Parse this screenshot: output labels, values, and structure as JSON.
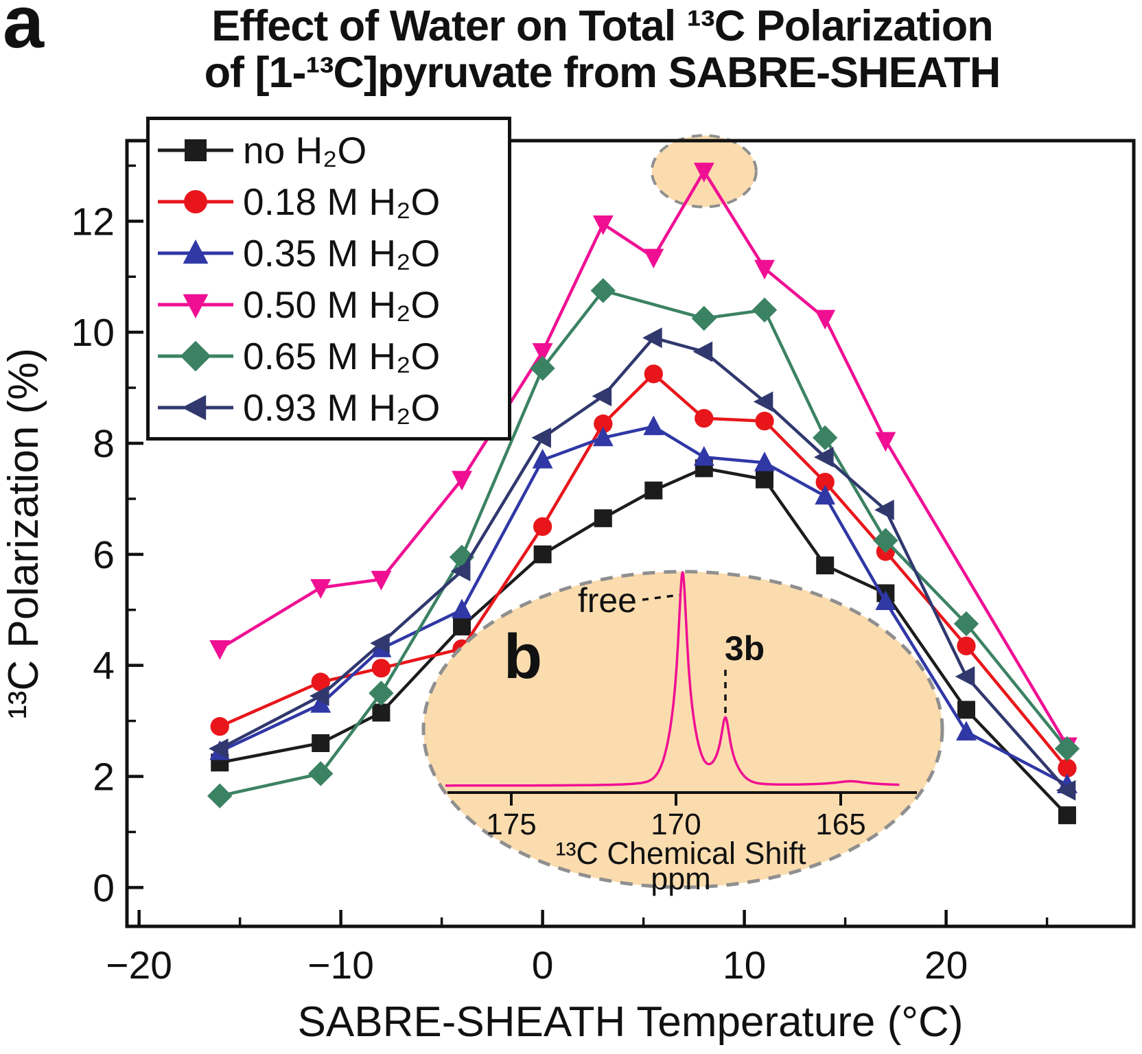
{
  "figure": {
    "panel_a": "a",
    "panel_b": "b",
    "title_line1": "Effect of Water on Total ¹³C Polarization",
    "title_line2": "of [1-¹³C]pyruvate from SABRE-SHEATH"
  },
  "chart_data": [
    {
      "id": "main",
      "type": "line",
      "title": "Effect of Water on Total 13C Polarization of [1-13C]pyruvate from SABRE-SHEATH",
      "xlabel": "SABRE-SHEATH Temperature (°C)",
      "ylabel": "¹³C Polarization (%)",
      "xlim": [
        -20.6,
        29.3
      ],
      "ylim": [
        -0.7,
        13.45
      ],
      "x_major_ticks": [
        -20,
        -10,
        0,
        10,
        20
      ],
      "x_minor_ticks": [
        -15,
        -5,
        5,
        15,
        25
      ],
      "y_major_ticks": [
        0,
        2,
        4,
        6,
        8,
        10,
        12
      ],
      "y_minor_ticks": [
        1,
        3,
        5,
        7,
        9,
        11,
        13
      ],
      "grid": false,
      "legend_position": "top-left",
      "series": [
        {
          "name": "no H₂O",
          "color": "#1c1c1c",
          "marker": "square",
          "points": [
            [
              -16,
              2.25
            ],
            [
              -11,
              2.6
            ],
            [
              -8,
              3.15
            ],
            [
              -4,
              4.7
            ],
            [
              0,
              6.0
            ],
            [
              3,
              6.65
            ],
            [
              5.5,
              7.15
            ],
            [
              8,
              7.55
            ],
            [
              11,
              7.35
            ],
            [
              14,
              5.8
            ],
            [
              17,
              5.3
            ],
            [
              21,
              3.2
            ],
            [
              26,
              1.3
            ]
          ]
        },
        {
          "name": "0.18 M H₂O",
          "color": "#e8161b",
          "marker": "circle",
          "points": [
            [
              -16,
              2.9
            ],
            [
              -11,
              3.7
            ],
            [
              -8,
              3.95
            ],
            [
              -4,
              4.3
            ],
            [
              0,
              6.5
            ],
            [
              3,
              8.35
            ],
            [
              5.5,
              9.25
            ],
            [
              8,
              8.45
            ],
            [
              11,
              8.4
            ],
            [
              14,
              7.3
            ],
            [
              17,
              6.05
            ],
            [
              21,
              4.35
            ],
            [
              26,
              2.15
            ]
          ]
        },
        {
          "name": "0.35 M H₂O",
          "color": "#3038a6",
          "marker": "triangle-up",
          "points": [
            [
              -16,
              2.45
            ],
            [
              -11,
              3.3
            ],
            [
              -8,
              4.3
            ],
            [
              -4,
              5.0
            ],
            [
              0,
              7.7
            ],
            [
              3,
              8.1
            ],
            [
              5.5,
              8.3
            ],
            [
              8,
              7.75
            ],
            [
              11,
              7.65
            ],
            [
              14,
              7.05
            ],
            [
              17,
              5.15
            ],
            [
              21,
              2.8
            ],
            [
              26,
              1.85
            ]
          ]
        },
        {
          "name": "0.50 M H₂O",
          "color": "#f00f93",
          "marker": "triangle-down",
          "points": [
            [
              -16,
              4.3
            ],
            [
              -11,
              5.4
            ],
            [
              -8,
              5.55
            ],
            [
              -4,
              7.35
            ],
            [
              0,
              9.65
            ],
            [
              3,
              11.95
            ],
            [
              5.5,
              11.35
            ],
            [
              8,
              12.9
            ],
            [
              11,
              11.15
            ],
            [
              14,
              10.25
            ],
            [
              17,
              8.05
            ],
            [
              26,
              2.55
            ]
          ]
        },
        {
          "name": "0.65 M H₂O",
          "color": "#3b8263",
          "marker": "diamond",
          "points": [
            [
              -16,
              1.65
            ],
            [
              -11,
              2.05
            ],
            [
              -8,
              3.5
            ],
            [
              -4,
              5.95
            ],
            [
              0,
              9.35
            ],
            [
              3,
              10.75
            ],
            [
              8,
              10.25
            ],
            [
              11,
              10.4
            ],
            [
              14,
              8.1
            ],
            [
              17,
              6.25
            ],
            [
              21,
              4.75
            ],
            [
              26,
              2.5
            ]
          ]
        },
        {
          "name": "0.93 M H₂O",
          "color": "#30386e",
          "marker": "triangle-left",
          "points": [
            [
              -16,
              2.5
            ],
            [
              -11,
              3.45
            ],
            [
              -8,
              4.4
            ],
            [
              -4,
              5.7
            ],
            [
              0,
              8.1
            ],
            [
              3,
              8.85
            ],
            [
              5.5,
              9.9
            ],
            [
              8,
              9.65
            ],
            [
              11,
              8.75
            ],
            [
              14,
              7.75
            ],
            [
              17,
              6.8
            ],
            [
              21,
              3.8
            ],
            [
              26,
              1.75
            ]
          ]
        }
      ],
      "highlight": {
        "x": 8,
        "y": 12.9,
        "series": "0.50 M H₂O",
        "note": "maximum point circled"
      }
    },
    {
      "id": "inset",
      "type": "line",
      "panel": "b",
      "xlabel": "¹³C Chemical Shift",
      "xunit": "ppm",
      "x_ticks": [
        175,
        170,
        165
      ],
      "x_reversed": true,
      "color": "#f00f93",
      "peaks": [
        {
          "label": "free",
          "ppm": 169.8,
          "rel_height": 1.0,
          "width": 0.16
        },
        {
          "label": "3b",
          "ppm": 168.5,
          "rel_height": 0.31,
          "width": 0.16
        },
        {
          "label": "",
          "ppm": 164.7,
          "rel_height": 0.02,
          "width": 0.5
        }
      ]
    }
  ],
  "colors": {
    "highlight_fill": "#fbdcae",
    "highlight_stroke": "#8f8f8f",
    "axis": "#111111"
  }
}
